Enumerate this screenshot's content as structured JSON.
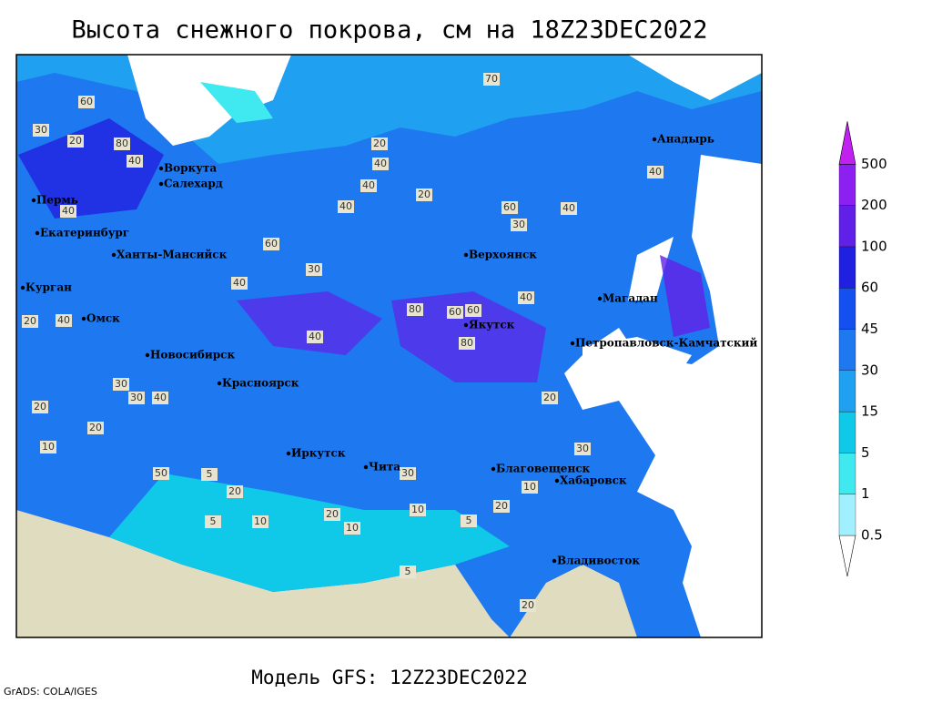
{
  "title": "Высота снежного покрова, см на 18Z23DEC2022",
  "footer": "Модель GFS: 12Z23DEC2022",
  "credit": "GrADS: COLA/IGES",
  "legend": {
    "levels": [
      0.5,
      1,
      5,
      15,
      30,
      45,
      60,
      100,
      200,
      500
    ],
    "colors": [
      "#ffffff",
      "#a0f0ff",
      "#40e8f0",
      "#10c8e8",
      "#20a0f0",
      "#1e78f0",
      "#1450f0",
      "#2020e0",
      "#6020e8",
      "#8c20f0",
      "#c020f0"
    ]
  },
  "cities": [
    "Воркута",
    "Салехард",
    "Пермь",
    "Екатеринбург",
    "Ханты-Мансийск",
    "Курган",
    "Омск",
    "Новосибирск",
    "Красноярск",
    "Иркутск",
    "Чита",
    "Верхоянск",
    "Якутск",
    "Анадырь",
    "Магадан",
    "Петропавловск-Камчатский",
    "Благовещенск",
    "Хабаровск",
    "Владивосток"
  ],
  "contour_labels": [
    "60",
    "80",
    "40",
    "30",
    "20",
    "40",
    "60",
    "40",
    "30",
    "70",
    "20",
    "40",
    "40",
    "30",
    "40",
    "60",
    "40",
    "20",
    "20",
    "40",
    "80",
    "60",
    "60",
    "40",
    "80",
    "40",
    "30",
    "40",
    "20",
    "10",
    "20",
    "50",
    "30",
    "5",
    "20",
    "10",
    "5",
    "20",
    "10",
    "30",
    "10",
    "5",
    "20",
    "10",
    "30",
    "20",
    "40",
    "20",
    "5"
  ]
}
